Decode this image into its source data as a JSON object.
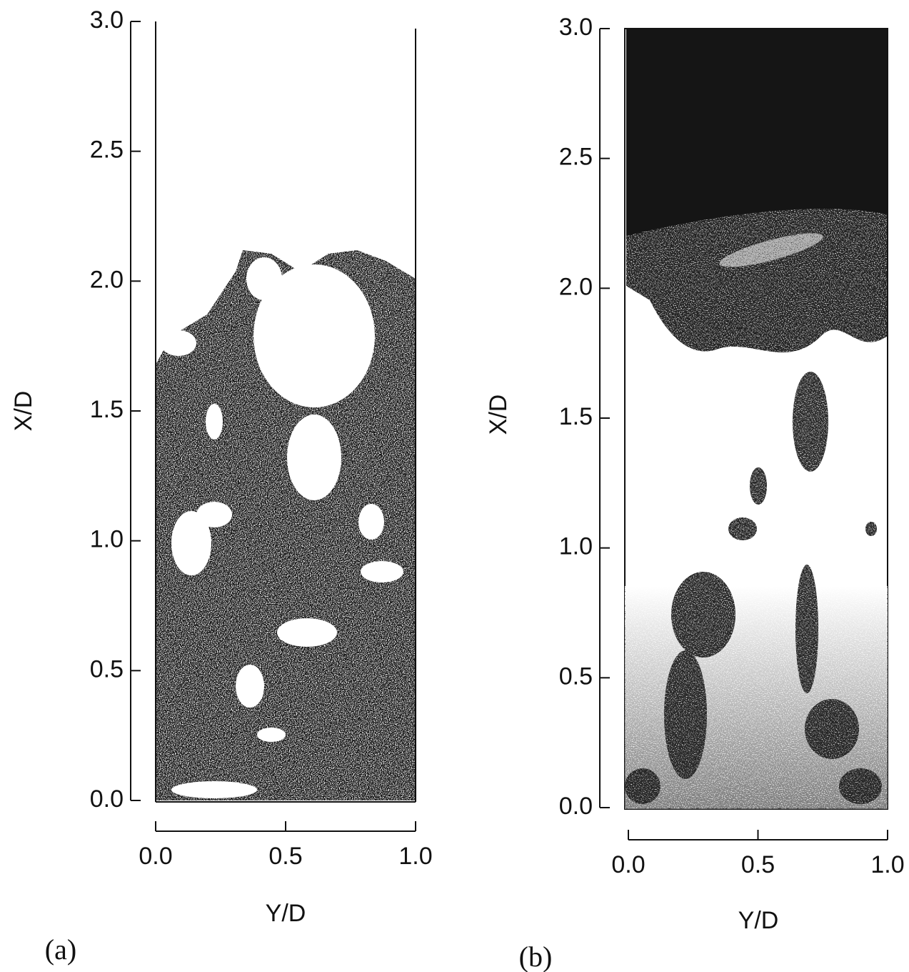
{
  "chart_data": [
    {
      "type": "image",
      "label": "(a)",
      "xlabel": "Y/D",
      "ylabel": "X/D",
      "xlim": [
        0,
        1
      ],
      "ylim": [
        0,
        3
      ],
      "xticks": [
        {
          "value": 0,
          "label": "0.0"
        },
        0.5,
        {
          "value": 1,
          "label": "1.0"
        }
      ],
      "yticks": [
        {
          "value": 0,
          "label": "0.0"
        },
        0.5,
        {
          "value": 1,
          "label": "1.0"
        },
        1.5,
        {
          "value": 2,
          "label": "2.0"
        },
        2.5,
        {
          "value": 3,
          "label": "3.0"
        }
      ]
    },
    {
      "type": "image",
      "label": "(b)",
      "xlabel": "Y/D",
      "ylabel": "X/D",
      "xlim": [
        0,
        1
      ],
      "ylim": [
        0,
        3
      ],
      "xticks": [
        {
          "value": 0,
          "label": "0.0"
        },
        0.5,
        {
          "value": 1,
          "label": "1.0"
        }
      ],
      "yticks": [
        {
          "value": 0,
          "label": "0.0"
        },
        0.5,
        {
          "value": 1,
          "label": "1.0"
        },
        1.5,
        {
          "value": 2,
          "label": "2.0"
        },
        2.5,
        {
          "value": 3,
          "label": "3.0"
        }
      ]
    }
  ]
}
